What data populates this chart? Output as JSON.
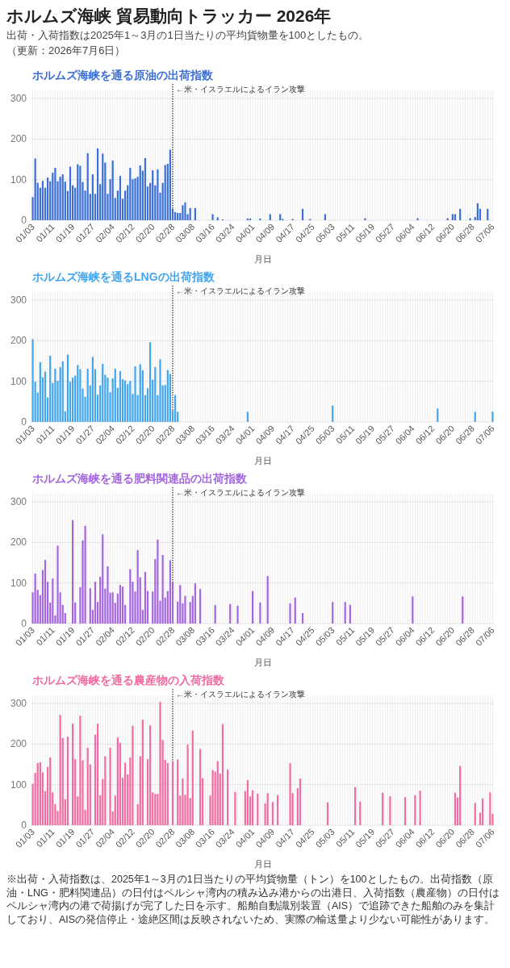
{
  "chart_data": [
    {
      "type": "other",
      "title": "ホルムズ海峡 貿易動向トラッカー 2026年",
      "subtitle": "出荷・入荷指数は2025年1～3月の1日当たりの平均貨物量を100としたもの。",
      "annotations": [
        "（更新：2026年7月6日）"
      ]
    },
    {
      "type": "bar",
      "title": "ホルムズ海峡を通る原油の出荷指数",
      "xlabel": "月日",
      "color": "#3b6fd6",
      "ylim": [
        0,
        320
      ],
      "yticks": [
        0,
        100,
        200,
        300
      ],
      "grid": true,
      "ref_lines": [
        {
          "axis": "x",
          "value": "02/28",
          "label": "←米・イスラエルによるイラン攻撃",
          "line_style": "dotted"
        }
      ],
      "categories": [
        "01/03",
        null,
        null,
        null,
        null,
        null,
        null,
        null,
        "01/11",
        null,
        null,
        null,
        null,
        null,
        null,
        null,
        "01/19",
        null,
        null,
        null,
        null,
        null,
        null,
        null,
        "01/27",
        null,
        null,
        null,
        null,
        null,
        null,
        null,
        "02/04",
        null,
        null,
        null,
        null,
        null,
        null,
        null,
        "02/12",
        null,
        null,
        null,
        null,
        null,
        null,
        null,
        "02/20",
        null,
        null,
        null,
        null,
        null,
        null,
        null,
        "02/28",
        null,
        null,
        null,
        null,
        null,
        null,
        null,
        "03/08",
        null,
        null,
        null,
        null,
        null,
        null,
        null,
        "03/16",
        null,
        null,
        null,
        null,
        null,
        null,
        null,
        "03/24",
        null,
        null,
        null,
        null,
        null,
        null,
        null,
        "04/01",
        null,
        null,
        null,
        null,
        null,
        null,
        null,
        "04/09",
        null,
        null,
        null,
        null,
        null,
        null,
        null,
        "04/17",
        null,
        null,
        null,
        null,
        null,
        null,
        null,
        "04/25",
        null,
        null,
        null,
        null,
        null,
        null,
        null,
        "05/03",
        null,
        null,
        null,
        null,
        null,
        null,
        null,
        "05/11",
        null,
        null,
        null,
        null,
        null,
        null,
        null,
        "05/19",
        null,
        null,
        null,
        null,
        null,
        null,
        null,
        "05/27",
        null,
        null,
        null,
        null,
        null,
        null,
        null,
        "06/04",
        null,
        null,
        null,
        null,
        null,
        null,
        null,
        "06/12",
        null,
        null,
        null,
        null,
        null,
        null,
        null,
        "06/20",
        null,
        null,
        null,
        null,
        null,
        null,
        null,
        "06/28",
        null,
        null,
        null,
        null,
        null,
        null,
        null,
        "07/06"
      ],
      "values": [
        57,
        152,
        92,
        80,
        97,
        80,
        105,
        96,
        117,
        129,
        96,
        107,
        113,
        95,
        72,
        132,
        86,
        80,
        138,
        134,
        94,
        73,
        165,
        65,
        113,
        65,
        177,
        89,
        164,
        142,
        65,
        101,
        147,
        55,
        73,
        109,
        53,
        73,
        86,
        129,
        101,
        103,
        107,
        135,
        122,
        153,
        83,
        92,
        123,
        86,
        125,
        68,
        92,
        136,
        139,
        174,
        28,
        20,
        18,
        18,
        37,
        44,
        15,
        30,
        null,
        30,
        null,
        null,
        null,
        null,
        null,
        null,
        15,
        null,
        7,
        null,
        2,
        null,
        null,
        null,
        null,
        null,
        null,
        null,
        null,
        null,
        4,
        4,
        null,
        null,
        null,
        4,
        null,
        null,
        null,
        15,
        null,
        null,
        null,
        15,
        3,
        null,
        null,
        null,
        3,
        null,
        null,
        null,
        28,
        null,
        null,
        3,
        null,
        null,
        null,
        null,
        null,
        15,
        null,
        null,
        null,
        null,
        null,
        null,
        null,
        null,
        null,
        null,
        null,
        null,
        null,
        null,
        null,
        5,
        null,
        null,
        null,
        null,
        null,
        null,
        null,
        null,
        null,
        null,
        null,
        null,
        null,
        null,
        null,
        null,
        null,
        null,
        null,
        null,
        5,
        null,
        null,
        null,
        null,
        null,
        null,
        null,
        null,
        null,
        null,
        null,
        5,
        null,
        15,
        15,
        null,
        28,
        null,
        null,
        null,
        5,
        null,
        8,
        42,
        28,
        null,
        null,
        28,
        null,
        null
      ]
    },
    {
      "type": "bar",
      "title": "ホルムズ海峡を通るLNGの出荷指数",
      "xlabel": "月日",
      "color": "#42a5ee",
      "ylim": [
        0,
        320
      ],
      "yticks": [
        0,
        100,
        200,
        300
      ],
      "grid": true,
      "ref_lines": [
        {
          "axis": "x",
          "value": "02/28",
          "label": "←米・イスラエルによるイラン攻撃",
          "line_style": "dotted"
        }
      ],
      "categories": [
        "01/03",
        null,
        null,
        null,
        null,
        null,
        null,
        null,
        "01/11",
        null,
        null,
        null,
        null,
        null,
        null,
        null,
        "01/19",
        null,
        null,
        null,
        null,
        null,
        null,
        null,
        "01/27",
        null,
        null,
        null,
        null,
        null,
        null,
        null,
        "02/04",
        null,
        null,
        null,
        null,
        null,
        null,
        null,
        "02/12",
        null,
        null,
        null,
        null,
        null,
        null,
        null,
        "02/20",
        null,
        null,
        null,
        null,
        null,
        null,
        null,
        "02/28",
        null,
        null,
        null,
        null,
        null,
        null,
        null,
        "03/08",
        null,
        null,
        null,
        null,
        null,
        null,
        null,
        "03/16",
        null,
        null,
        null,
        null,
        null,
        null,
        null,
        "03/24",
        null,
        null,
        null,
        null,
        null,
        null,
        null,
        "04/01",
        null,
        null,
        null,
        null,
        null,
        null,
        null,
        "04/09",
        null,
        null,
        null,
        null,
        null,
        null,
        null,
        "04/17",
        null,
        null,
        null,
        null,
        null,
        null,
        null,
        "04/25",
        null,
        null,
        null,
        null,
        null,
        null,
        null,
        "05/03",
        null,
        null,
        null,
        null,
        null,
        null,
        null,
        "05/11",
        null,
        null,
        null,
        null,
        null,
        null,
        null,
        "05/19",
        null,
        null,
        null,
        null,
        null,
        null,
        null,
        "05/27",
        null,
        null,
        null,
        null,
        null,
        null,
        null,
        "06/04",
        null,
        null,
        null,
        null,
        null,
        null,
        null,
        "06/12",
        null,
        null,
        null,
        null,
        null,
        null,
        null,
        "06/20",
        null,
        null,
        null,
        null,
        null,
        null,
        null,
        "06/28",
        null,
        null,
        null,
        null,
        null,
        null,
        null,
        "07/06"
      ],
      "values": [
        204,
        99,
        72,
        147,
        110,
        124,
        60,
        163,
        96,
        131,
        101,
        135,
        149,
        26,
        166,
        99,
        109,
        114,
        140,
        130,
        82,
        62,
        131,
        90,
        160,
        130,
        67,
        90,
        143,
        116,
        109,
        73,
        107,
        131,
        84,
        125,
        105,
        102,
        93,
        101,
        69,
        137,
        66,
        142,
        127,
        66,
        83,
        196,
        104,
        135,
        66,
        154,
        90,
        91,
        128,
        118,
        28,
        66,
        25,
        null,
        null,
        null,
        null,
        null,
        null,
        null,
        null,
        null,
        null,
        null,
        null,
        null,
        null,
        null,
        null,
        null,
        null,
        null,
        null,
        null,
        null,
        null,
        null,
        null,
        null,
        null,
        25,
        null,
        null,
        null,
        null,
        null,
        null,
        null,
        null,
        null,
        null,
        null,
        null,
        null,
        null,
        null,
        null,
        null,
        null,
        null,
        null,
        null,
        null,
        null,
        null,
        null,
        null,
        null,
        null,
        null,
        null,
        null,
        null,
        null,
        40,
        null,
        null,
        null,
        null,
        null,
        null,
        null,
        null,
        null,
        null,
        null,
        null,
        null,
        null,
        null,
        null,
        null,
        null,
        null,
        null,
        null,
        null,
        null,
        null,
        null,
        null,
        null,
        null,
        null,
        null,
        null,
        null,
        null,
        null,
        null,
        null,
        null,
        null,
        null,
        null,
        null,
        33,
        null,
        null,
        null,
        null,
        null,
        null,
        null,
        null,
        null,
        null,
        null,
        null,
        null,
        null,
        25,
        null,
        null,
        null,
        null,
        null,
        null,
        25
      ]
    },
    {
      "type": "bar",
      "title": "ホルムズ海峡を通る肥料関連品の出荷指数",
      "xlabel": "月日",
      "color": "#a466df",
      "ylim": [
        0,
        320
      ],
      "yticks": [
        0,
        100,
        200,
        300
      ],
      "grid": true,
      "ref_lines": [
        {
          "axis": "x",
          "value": "02/28",
          "label": "←米・イスラエルによるイラン攻撃",
          "line_style": "dotted"
        }
      ],
      "categories": [
        "01/03",
        null,
        null,
        null,
        null,
        null,
        null,
        null,
        "01/11",
        null,
        null,
        null,
        null,
        null,
        null,
        null,
        "01/19",
        null,
        null,
        null,
        null,
        null,
        null,
        null,
        "01/27",
        null,
        null,
        null,
        null,
        null,
        null,
        null,
        "02/04",
        null,
        null,
        null,
        null,
        null,
        null,
        null,
        "02/12",
        null,
        null,
        null,
        null,
        null,
        null,
        null,
        "02/20",
        null,
        null,
        null,
        null,
        null,
        null,
        null,
        "02/28",
        null,
        null,
        null,
        null,
        null,
        null,
        null,
        "03/08",
        null,
        null,
        null,
        null,
        null,
        null,
        null,
        "03/16",
        null,
        null,
        null,
        null,
        null,
        null,
        null,
        "03/24",
        null,
        null,
        null,
        null,
        null,
        null,
        null,
        "04/01",
        null,
        null,
        null,
        null,
        null,
        null,
        null,
        "04/09",
        null,
        null,
        null,
        null,
        null,
        null,
        null,
        "04/17",
        null,
        null,
        null,
        null,
        null,
        null,
        null,
        "04/25",
        null,
        null,
        null,
        null,
        null,
        null,
        null,
        "05/03",
        null,
        null,
        null,
        null,
        null,
        null,
        null,
        "05/11",
        null,
        null,
        null,
        null,
        null,
        null,
        null,
        "05/19",
        null,
        null,
        null,
        null,
        null,
        null,
        null,
        "05/27",
        null,
        null,
        null,
        null,
        null,
        null,
        null,
        "06/04",
        null,
        null,
        null,
        null,
        null,
        null,
        null,
        "06/12",
        null,
        null,
        null,
        null,
        null,
        null,
        null,
        "06/20",
        null,
        null,
        null,
        null,
        null,
        null,
        null,
        "06/28",
        null,
        null,
        null,
        null,
        null,
        null,
        null,
        "07/06"
      ],
      "values": [
        77,
        123,
        83,
        70,
        132,
        157,
        103,
        52,
        111,
        20,
        192,
        77,
        46,
        26,
        null,
        null,
        255,
        52,
        null,
        90,
        205,
        241,
        null,
        87,
        34,
        103,
        53,
        115,
        220,
        86,
        141,
        76,
        77,
        51,
        74,
        95,
        91,
        46,
        null,
        134,
        103,
        79,
        181,
        114,
        34,
        127,
        80,
        null,
        79,
        159,
        207,
        56,
        169,
        64,
        80,
        156,
        102,
        null,
        54,
        95,
        50,
        68,
        null,
        53,
        68,
        99,
        null,
        85,
        null,
        null,
        null,
        null,
        null,
        46,
        null,
        null,
        null,
        null,
        null,
        48,
        null,
        null,
        44,
        null,
        null,
        null,
        null,
        null,
        80,
        null,
        null,
        52,
        null,
        null,
        117,
        null,
        null,
        null,
        null,
        null,
        null,
        null,
        null,
        50,
        null,
        64,
        null,
        null,
        26,
        null,
        null,
        null,
        null,
        null,
        null,
        null,
        null,
        null,
        null,
        null,
        53,
        null,
        null,
        null,
        null,
        53,
        null,
        46,
        null,
        null,
        null,
        null,
        null,
        null,
        null,
        null,
        null,
        null,
        null,
        null,
        null,
        null,
        null,
        null,
        null,
        null,
        null,
        null,
        null,
        null,
        null,
        null,
        67,
        null,
        null,
        null,
        null,
        null,
        null,
        null,
        null,
        null,
        null,
        null,
        null,
        null,
        null,
        null,
        null,
        null,
        null,
        null,
        67,
        null,
        null,
        null,
        null,
        null,
        null,
        null,
        null,
        null,
        null,
        null,
        null
      ]
    },
    {
      "type": "bar",
      "title": "ホルムズ海峡を通る農産物の入荷指数",
      "xlabel": "月日",
      "color": "#f06ca2",
      "ylim": [
        0,
        320
      ],
      "yticks": [
        0,
        100,
        200,
        300
      ],
      "grid": true,
      "ref_lines": [
        {
          "axis": "x",
          "value": "02/28",
          "label": "←米・イスラエルによるイラン攻撃",
          "line_style": "dotted"
        }
      ],
      "categories": [
        "01/03",
        null,
        null,
        null,
        null,
        null,
        null,
        null,
        "01/11",
        null,
        null,
        null,
        null,
        null,
        null,
        null,
        "01/19",
        null,
        null,
        null,
        null,
        null,
        null,
        null,
        "01/27",
        null,
        null,
        null,
        null,
        null,
        null,
        null,
        "02/04",
        null,
        null,
        null,
        null,
        null,
        null,
        null,
        "02/12",
        null,
        null,
        null,
        null,
        null,
        null,
        null,
        "02/20",
        null,
        null,
        null,
        null,
        null,
        null,
        null,
        "02/28",
        null,
        null,
        null,
        null,
        null,
        null,
        null,
        "03/08",
        null,
        null,
        null,
        null,
        null,
        null,
        null,
        "03/16",
        null,
        null,
        null,
        null,
        null,
        null,
        null,
        "03/24",
        null,
        null,
        null,
        null,
        null,
        null,
        null,
        "04/01",
        null,
        null,
        null,
        null,
        null,
        null,
        null,
        "04/09",
        null,
        null,
        null,
        null,
        null,
        null,
        null,
        "04/17",
        null,
        null,
        null,
        null,
        null,
        null,
        null,
        "04/25",
        null,
        null,
        null,
        null,
        null,
        null,
        null,
        "05/03",
        null,
        null,
        null,
        null,
        null,
        null,
        null,
        "05/11",
        null,
        null,
        null,
        null,
        null,
        null,
        null,
        "05/19",
        null,
        null,
        null,
        null,
        null,
        null,
        null,
        "05/27",
        null,
        null,
        null,
        null,
        null,
        null,
        null,
        "06/04",
        null,
        null,
        null,
        null,
        null,
        null,
        null,
        "06/12",
        null,
        null,
        null,
        null,
        null,
        null,
        null,
        "06/20",
        null,
        null,
        null,
        null,
        null,
        null,
        null,
        "06/28",
        null,
        null,
        null,
        null,
        null,
        null,
        null,
        "07/06"
      ],
      "values": [
        102,
        129,
        153,
        155,
        130,
        84,
        144,
        167,
        81,
        52,
        35,
        272,
        215,
        64,
        218,
        null,
        250,
        163,
        71,
        270,
        160,
        38,
        191,
        150,
        null,
        223,
        250,
        74,
        114,
        170,
        null,
        191,
        34,
        73,
        216,
        203,
        117,
        154,
        125,
        167,
        245,
        null,
        52,
        170,
        260,
        null,
        163,
        246,
        81,
        77,
        77,
        304,
        210,
        161,
        153,
        null,
        158,
        null,
        162,
        73,
        115,
        75,
        199,
        67,
        233,
        null,
        null,
        188,
        116,
        null,
        null,
        73,
        136,
        132,
        158,
        127,
        249,
        null,
        137,
        null,
        null,
        82,
        null,
        null,
        null,
        84,
        111,
        71,
        86,
        null,
        78,
        null,
        null,
        54,
        79,
        null,
        57,
        null,
        74,
        null,
        null,
        null,
        null,
        153,
        79,
        null,
        91,
        115,
        null,
        null,
        null,
        null,
        null,
        null,
        null,
        null,
        null,
        null,
        56,
        null,
        null,
        null,
        null,
        null,
        null,
        null,
        null,
        null,
        null,
        94,
        null,
        58,
        null,
        null,
        null,
        null,
        null,
        null,
        null,
        null,
        80,
        null,
        null,
        71,
        null,
        null,
        null,
        null,
        null,
        69,
        null,
        null,
        null,
        74,
        null,
        85,
        null,
        null,
        null,
        null,
        null,
        null,
        null,
        null,
        null,
        null,
        null,
        null,
        null,
        80,
        68,
        146,
        null,
        null,
        null,
        null,
        null,
        55,
        null,
        31,
        66,
        null,
        null,
        81,
        28
      ]
    },
    {
      "type": "other",
      "annotations": [
        "※出荷・入荷指数は、2025年1～3月の1日当たりの平均貨物量（トン）を100としたもの。出荷指数（原油・LNG・肥料関連品）の日付はペルシャ湾内の積み込み港からの出港日、入荷指数（農産物）の日付はペルシャ湾内の港で荷揚げが完了した日を示す。船舶自動識別装置（AIS）で追跡できた船舶のみを集計しており、AISの発信停止・途絶区間は反映されないため、実際の輸送量より少ない可能性があります。"
      ]
    }
  ]
}
